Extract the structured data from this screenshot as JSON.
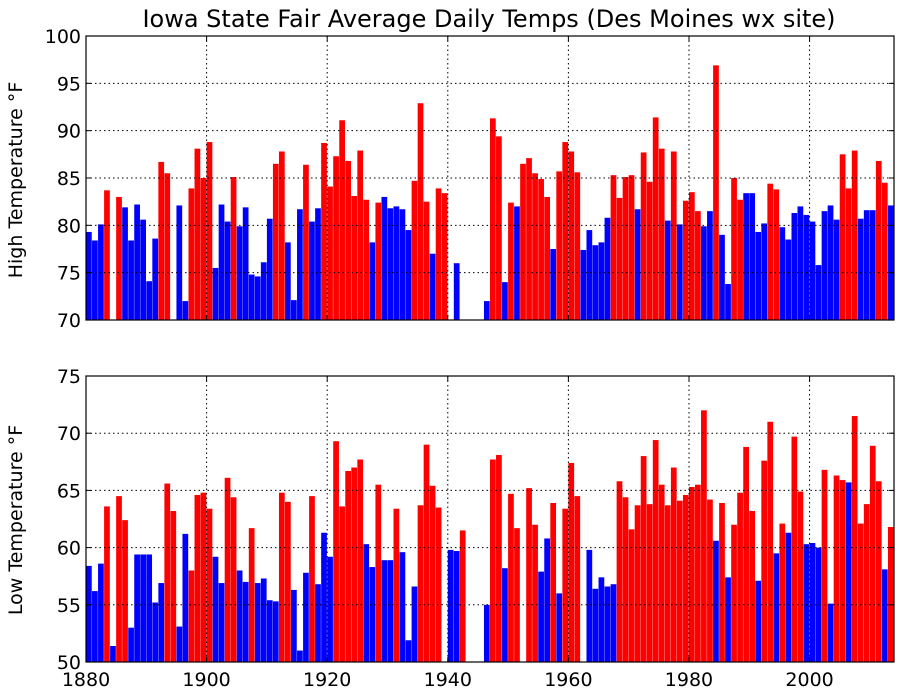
{
  "chart_data": [
    {
      "type": "bar",
      "title": "Iowa State Fair Average Daily Temps (Des Moines wx site)",
      "ylabel": "High Temperature °F",
      "xlabel": "",
      "xlim": [
        1880,
        2014
      ],
      "ylim": [
        70,
        100
      ],
      "yticks": [
        70,
        75,
        80,
        85,
        90,
        95,
        100
      ],
      "xticks": [
        1880,
        1900,
        1920,
        1940,
        1960,
        1980,
        2000
      ],
      "grid": true,
      "series": [
        {
          "color": "#0000ff",
          "x": [
            1880,
            1881,
            1882,
            1886,
            1887,
            1888,
            1889,
            1890,
            1891,
            1895,
            1896,
            1901,
            1902,
            1903,
            1905,
            1906,
            1907,
            1908,
            1909,
            1910,
            1913,
            1914,
            1915,
            1917,
            1918,
            1927,
            1929,
            1930,
            1931,
            1932,
            1933,
            1937,
            1941,
            1943,
            1944,
            1945,
            1946,
            1948,
            1949,
            1951,
            1957,
            1962,
            1963,
            1964,
            1965,
            1966,
            1971,
            1976,
            1978,
            1982,
            1983,
            1985,
            1986,
            1989,
            1990,
            1991,
            1992,
            1995,
            1996,
            1997,
            1998,
            1999,
            2000,
            2001,
            2002,
            2003,
            2004,
            2006,
            2008,
            2009,
            2010,
            2012,
            2013
          ],
          "values": [
            79.3,
            78.4,
            80.1,
            81.9,
            78.4,
            82.2,
            80.6,
            74.1,
            78.6,
            82.1,
            72.0,
            75.5,
            82.2,
            80.4,
            79.9,
            81.9,
            74.8,
            74.6,
            76.1,
            80.7,
            78.2,
            72.1,
            81.7,
            80.4,
            81.8,
            78.2,
            83.0,
            81.8,
            82.0,
            81.7,
            79.5,
            77.0,
            76.0,
            70.0,
            70.0,
            70.0,
            72.0,
            81.8,
            74.0,
            82.0,
            77.5,
            77.4,
            79.5,
            77.9,
            78.2,
            80.8,
            81.7,
            80.5,
            80.1,
            79.9,
            81.5,
            79.0,
            73.8,
            83.4,
            83.4,
            79.3,
            80.2,
            79.8,
            78.5,
            81.3,
            82.0,
            81.1,
            80.4,
            75.8,
            81.5,
            82.1,
            80.6,
            82.1,
            80.7,
            81.6,
            81.6,
            80.7,
            82.1
          ]
        },
        {
          "color": "#ff0000",
          "x": [
            1883,
            1885,
            1892,
            1893,
            1897,
            1898,
            1899,
            1900,
            1904,
            1911,
            1912,
            1916,
            1919,
            1920,
            1921,
            1922,
            1923,
            1924,
            1925,
            1926,
            1928,
            1934,
            1935,
            1936,
            1938,
            1939,
            1947,
            1950,
            1952,
            1953,
            1954,
            1955,
            1956,
            1958,
            1959,
            1960,
            1961,
            1967,
            1968,
            1969,
            1970,
            1972,
            1973,
            1974,
            1975,
            1977,
            1979,
            1980,
            1981,
            1984,
            1987,
            1988,
            1993,
            1994,
            2005,
            2007,
            2011
          ],
          "values": [
            83.7,
            83.0,
            86.7,
            85.5,
            83.9,
            88.1,
            85.0,
            88.8,
            85.1,
            86.5,
            87.8,
            86.4,
            88.7,
            84.1,
            87.3,
            91.1,
            86.8,
            83.1,
            87.9,
            82.7,
            82.4,
            84.7,
            92.9,
            82.5,
            83.9,
            83.4,
            89.5,
            82.4,
            86.5,
            87.1,
            85.5,
            84.9,
            83.0,
            85.7,
            88.8,
            87.8,
            85.6,
            85.3,
            82.9,
            85.1,
            85.3,
            87.7,
            84.6,
            91.4,
            88.1,
            87.8,
            82.6,
            83.5,
            81.5,
            96.9,
            85.0,
            82.7,
            83.7,
            83.8,
            87.5,
            87.9,
            86.8
          ]
        }
      ],
      "extra_red": {
        "x": [
          1948,
          1993
        ],
        "values": [
          89.4,
          83.7
        ]
      },
      "extra_blue": {
        "x": [],
        "values": []
      },
      "extra": {
        "x": [
          1947,
          1948,
          1993,
          2005,
          2006,
          2007,
          2012,
          2013
        ],
        "values": [
          91.3,
          89.4,
          84.4,
          87.5,
          83.9,
          87.9,
          84.5,
          82.1
        ],
        "color": [
          "#ff0000",
          "#ff0000",
          "#ff0000",
          "#ff0000",
          "#ff0000",
          "#ff0000",
          "#ff0000",
          "#0000ff"
        ]
      }
    },
    {
      "type": "bar",
      "title": "",
      "ylabel": "Low Temperature °F",
      "xlabel": "",
      "xlim": [
        1880,
        2014
      ],
      "ylim": [
        50,
        75
      ],
      "yticks": [
        50,
        55,
        60,
        65,
        70,
        75
      ],
      "xticks": [
        1880,
        1900,
        1920,
        1940,
        1960,
        1980,
        2000
      ],
      "grid": true,
      "series": [
        {
          "color": "#0000ff",
          "x": [
            1880,
            1881,
            1882,
            1884,
            1887,
            1888,
            1889,
            1890,
            1891,
            1892,
            1895,
            1896,
            1901,
            1902,
            1903,
            1905,
            1906,
            1908,
            1909,
            1910,
            1911,
            1914,
            1915,
            1916,
            1918,
            1919,
            1920,
            1922,
            1926,
            1927,
            1929,
            1930,
            1932,
            1933,
            1934,
            1940,
            1941,
            1946,
            1948,
            1949,
            1951,
            1955,
            1956,
            1958,
            1963,
            1964,
            1965,
            1966,
            1967,
            1970,
            1976,
            1980,
            1984,
            1986,
            1991,
            1994,
            1996,
            1999,
            2000,
            2001,
            2003,
            2006,
            2012
          ],
          "values": [
            58.4,
            56.2,
            58.6,
            51.4,
            53.0,
            59.4,
            59.4,
            59.4,
            55.2,
            56.9,
            53.1,
            61.2,
            59.2,
            56.9,
            57.8,
            58.0,
            57.0,
            56.9,
            57.3,
            55.4,
            55.3,
            56.3,
            51.0,
            57.8,
            56.8,
            61.3,
            59.2,
            57.4,
            60.3,
            58.3,
            58.9,
            58.9,
            59.6,
            51.9,
            56.6,
            59.8,
            59.7,
            55.0,
            56.1,
            58.2,
            59.9,
            57.9,
            60.8,
            56.0,
            59.8,
            56.4,
            57.4,
            56.6,
            56.8,
            59.8,
            59.8,
            59.8,
            60.6,
            57.4,
            57.1,
            59.5,
            61.3,
            60.3,
            60.4,
            60.0,
            55.1,
            65.7,
            58.1
          ]
        },
        {
          "color": "#ff0000",
          "x": [
            1883,
            1885,
            1886,
            1893,
            1894,
            1897,
            1898,
            1899,
            1900,
            1903,
            1904,
            1907,
            1912,
            1913,
            1917,
            1921,
            1922,
            1923,
            1924,
            1925,
            1928,
            1931,
            1935,
            1936,
            1937,
            1938,
            1942,
            1947,
            1948,
            1950,
            1951,
            1953,
            1954,
            1957,
            1959,
            1960,
            1961,
            1968,
            1969,
            1970,
            1971,
            1972,
            1973,
            1974,
            1975,
            1976,
            1977,
            1978,
            1979,
            1980,
            1981,
            1982,
            1983,
            1985,
            1987,
            1988,
            1989,
            1990,
            1992,
            1993,
            1995,
            1997,
            1998,
            2002,
            2004,
            2005,
            2007,
            2008,
            2009,
            2010,
            2011,
            2013
          ],
          "values": [
            63.6,
            64.5,
            62.4,
            65.6,
            63.2,
            58.0,
            64.6,
            64.8,
            63.4,
            66.1,
            64.4,
            61.7,
            64.8,
            64.0,
            64.5,
            69.3,
            63.6,
            66.7,
            67.0,
            67.7,
            65.5,
            63.4,
            63.7,
            69.0,
            65.4,
            63.5,
            61.5,
            67.7,
            68.1,
            64.7,
            61.7,
            65.2,
            62.0,
            63.9,
            63.4,
            67.4,
            64.5,
            65.8,
            64.4,
            61.6,
            63.7,
            68.0,
            63.8,
            69.4,
            65.5,
            63.7,
            67.0,
            64.1,
            64.6,
            65.3,
            65.5,
            72.0,
            64.2,
            63.9,
            62.0,
            64.8,
            68.8,
            63.2,
            67.6,
            71.0,
            62.1,
            69.7,
            64.9,
            66.8,
            66.3,
            65.9,
            71.5,
            62.1,
            63.8,
            68.9,
            65.8,
            61.8
          ]
        }
      ]
    }
  ]
}
